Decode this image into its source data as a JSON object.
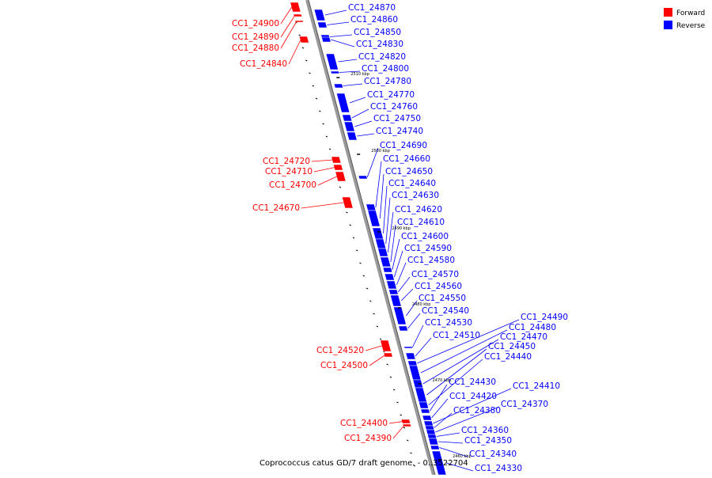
{
  "legend": {
    "forward_label": "Forward",
    "reverse_label": "Reverse",
    "forward_color": "#ff0000",
    "reverse_color": "#0000ff"
  },
  "caption": "Coprococcus catus GD/7 draft genome. - 0..3522704",
  "scale_labels": [
    "2510 kbp",
    "2500 kbp",
    "2490 kbp",
    "2480 kbp",
    "2470 kbp",
    "2460 kbp"
  ],
  "forward_genes": [
    "CC1_24900",
    "CC1_24890",
    "CC1_24880",
    "CC1_24840",
    "CC1_24720",
    "CC1_24710",
    "CC1_24700",
    "CC1_24670",
    "CC1_24520",
    "CC1_24500",
    "CC1_24400",
    "CC1_24390"
  ],
  "reverse_genes": [
    "CC1_24870",
    "CC1_24860",
    "CC1_24850",
    "CC1_24830",
    "CC1_24820",
    "CC1_24800",
    "CC1_24780",
    "CC1_24770",
    "CC1_24760",
    "CC1_24750",
    "CC1_24740",
    "CC1_24690",
    "CC1_24660",
    "CC1_24650",
    "CC1_24640",
    "CC1_24630",
    "CC1_24620",
    "CC1_24610",
    "CC1_24600",
    "CC1_24590",
    "CC1_24580",
    "CC1_24570",
    "CC1_24560",
    "CC1_24550",
    "CC1_24540",
    "CC1_24530",
    "CC1_24510",
    "CC1_24490",
    "CC1_24480",
    "CC1_24470",
    "CC1_24450",
    "CC1_24440",
    "CC1_24430",
    "CC1_24420",
    "CC1_24410",
    "CC1_24380",
    "CC1_24370",
    "CC1_24360",
    "CC1_24350",
    "CC1_24340",
    "CC1_24330"
  ]
}
